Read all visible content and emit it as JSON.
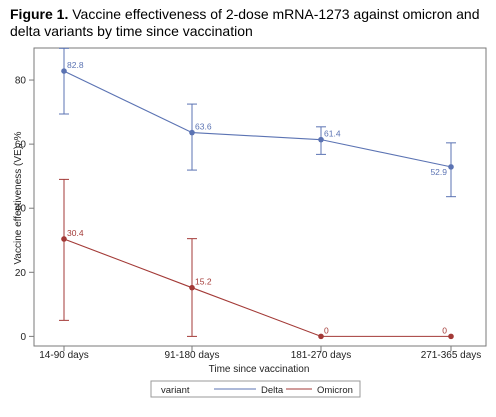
{
  "figure": {
    "label": "Figure 1.",
    "caption": "Vaccine effectiveness of 2-dose mRNA-1273 against omicron and delta variants by time since vaccination"
  },
  "chart_data": {
    "type": "line",
    "categories": [
      "14-90 days",
      "91-180 days",
      "181-270 days",
      "271-365 days"
    ],
    "xlabel": "Time since vaccination",
    "ylabel": "Vaccine effectiveness (VE), %",
    "ylim": [
      -3,
      90
    ],
    "yticks": [
      0,
      20,
      40,
      60,
      80
    ],
    "grid": false,
    "legend": {
      "title": "variant",
      "position": "bottom"
    },
    "series": [
      {
        "name": "Delta",
        "color": "#5b73b3",
        "values": [
          82.8,
          63.6,
          61.4,
          52.9
        ],
        "labels": [
          "82.8",
          "63.6",
          "61.4",
          "52.9"
        ],
        "ci_low": [
          69.4,
          51.9,
          56.8,
          43.6
        ],
        "ci_high": [
          89.9,
          72.5,
          65.4,
          60.4
        ]
      },
      {
        "name": "Omicron",
        "color": "#a33a37",
        "values": [
          30.4,
          15.2,
          0,
          0
        ],
        "labels": [
          "30.4",
          "15.2",
          "0",
          "0"
        ],
        "ci_low": [
          5.0,
          0,
          0,
          0
        ],
        "ci_high": [
          49.0,
          30.5,
          0,
          0
        ]
      }
    ]
  }
}
